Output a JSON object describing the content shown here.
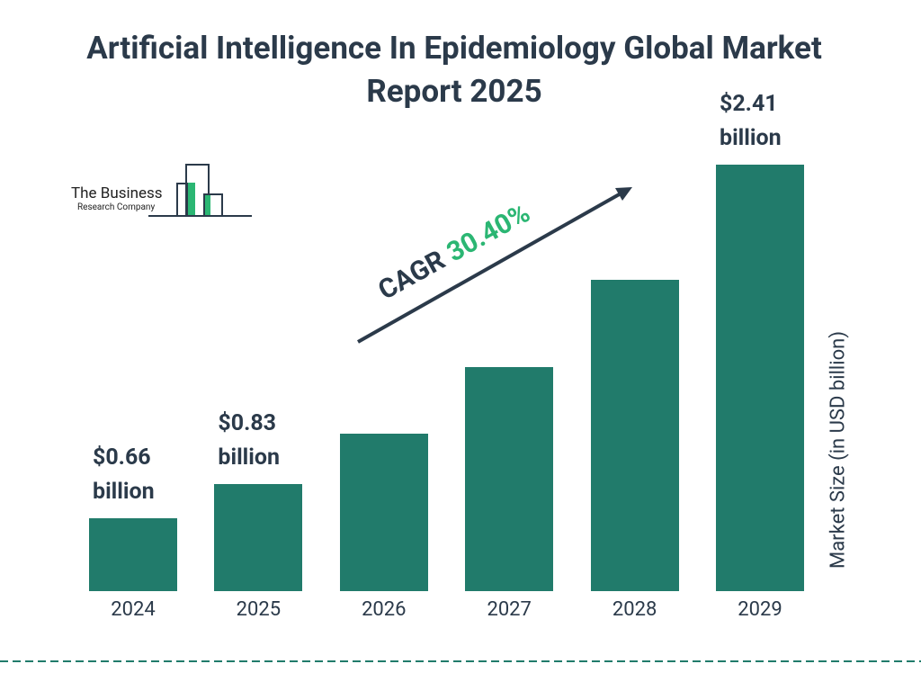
{
  "chart_data": {
    "type": "bar",
    "title": "Artificial Intelligence In Epidemiology Global Market Report 2025",
    "categories": [
      "2024",
      "2025",
      "2026",
      "2027",
      "2028",
      "2029"
    ],
    "values": [
      0.66,
      0.83,
      1.08,
      1.41,
      1.84,
      2.41
    ],
    "value_labels": [
      "$0.66 billion",
      "$0.83 billion",
      null,
      null,
      null,
      "$2.41 billion"
    ],
    "color": "#217b6b",
    "ylim": [
      0.3,
      2.45
    ],
    "y_label": "Market Size (in USD billion)",
    "cagr_label": "CAGR",
    "cagr_value": "30.40%"
  },
  "logo": {
    "line1": "The Business",
    "line2": "Research Company"
  }
}
